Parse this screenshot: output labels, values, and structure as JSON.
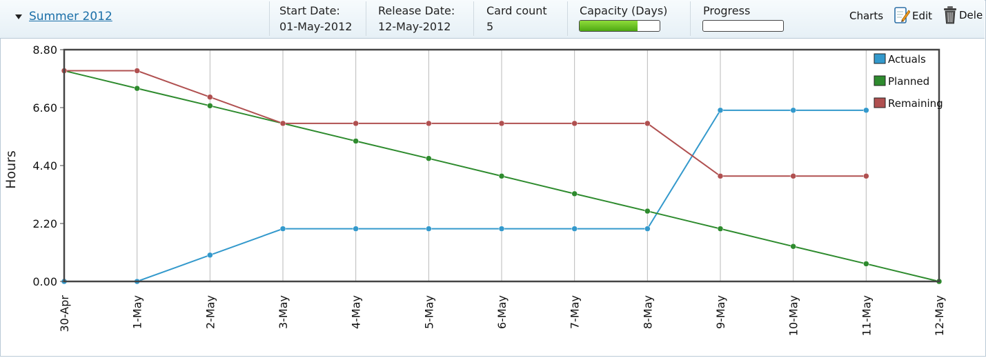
{
  "header": {
    "sprint_name": "Summer 2012",
    "start_label": "Start Date:",
    "start_value": "01-May-2012",
    "release_label": "Release Date:",
    "release_value": "12-May-2012",
    "card_label": "Card count",
    "card_value": "5",
    "capacity_label": "Capacity (Days)",
    "capacity_fraction": 0.72,
    "progress_label": "Progress",
    "progress_fraction": 0,
    "charts_label": "Charts",
    "edit_label": "Edit",
    "delete_label": "Dele"
  },
  "icons": {
    "collapse": "triangle-down-icon",
    "edit": "pencil-page-icon",
    "delete": "trash-icon"
  },
  "chart_data": {
    "type": "line",
    "ylabel": "Hours",
    "xlabel": "",
    "ylim": [
      0,
      8.8
    ],
    "yticks": [
      "0.00",
      "2.20",
      "4.40",
      "6.60",
      "8.80"
    ],
    "categories": [
      "30-Apr",
      "1-May",
      "2-May",
      "3-May",
      "4-May",
      "5-May",
      "6-May",
      "7-May",
      "8-May",
      "9-May",
      "10-May",
      "11-May",
      "12-May"
    ],
    "grid": true,
    "legend_position": "top-right",
    "series": [
      {
        "name": "Actuals",
        "color": "#3399cc",
        "values": [
          0,
          0,
          1,
          2,
          2,
          2,
          2,
          2,
          2,
          6.5,
          6.5,
          6.5,
          null
        ]
      },
      {
        "name": "Planned",
        "color": "#2e8b2e",
        "values": [
          8,
          7.33,
          6.67,
          6,
          5.33,
          4.67,
          4,
          3.33,
          2.67,
          2,
          1.33,
          0.67,
          0
        ]
      },
      {
        "name": "Remaining",
        "color": "#b05050",
        "values": [
          8,
          8,
          7,
          6,
          6,
          6,
          6,
          6,
          6,
          4,
          4,
          4,
          null
        ]
      }
    ]
  }
}
